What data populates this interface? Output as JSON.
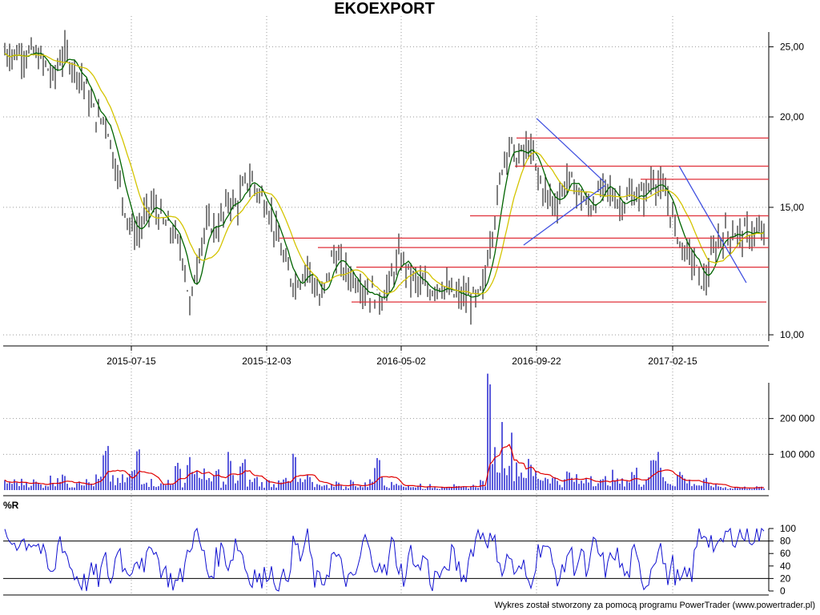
{
  "chart_data": [
    {
      "type": "candlestick",
      "title": "EKOEXPORT",
      "x_tick_labels": [
        "2015-07-15",
        "2015-12-03",
        "2016-05-02",
        "2016-09-22",
        "2017-02-15"
      ],
      "y_tick_labels": [
        "10,00",
        "15,00",
        "20,00",
        "25,00"
      ],
      "ylim": [
        9.8,
        26.2
      ],
      "y_scale": "log",
      "grid": true,
      "price_series": [
        24.5,
        24.0,
        23.5,
        22.5,
        24.0,
        24.5,
        23.5,
        23.0,
        22.0,
        20.5,
        19.8,
        20.0,
        18.0,
        16.5,
        15.0,
        14.0,
        13.8,
        14.5,
        15.2,
        14.8,
        14.2,
        14.0,
        13.5,
        12.8,
        10.8,
        12.5,
        13.8,
        14.2,
        14.0,
        14.5,
        15.5,
        15.0,
        15.8,
        16.5,
        16.0,
        15.5,
        15.0,
        14.0,
        13.0,
        12.2,
        11.8,
        12.0,
        12.5,
        11.8,
        11.0,
        12.0,
        13.0,
        12.5,
        12.2,
        12.0,
        11.8,
        11.5,
        11.4,
        11.2,
        11.5,
        12.0,
        12.8,
        12.5,
        12.0,
        11.8,
        11.6,
        11.5,
        11.8,
        11.6,
        11.4,
        11.3,
        11.3,
        11.2,
        11.2,
        11.6,
        13.5,
        15.0,
        17.5,
        18.5,
        17.5,
        17.8,
        18.2,
        17.0,
        16.0,
        15.5,
        15.2,
        15.8,
        16.5,
        16.0,
        15.5,
        15.0,
        15.2,
        15.8,
        16.0,
        15.5,
        15.2,
        15.4,
        15.6,
        15.5,
        15.8,
        16.5,
        16.0,
        15.5,
        14.5,
        13.5,
        13.0,
        12.8,
        12.0,
        11.8,
        12.8,
        13.5,
        13.8
      ],
      "price_series_x": {
        "start": "2015-04-01",
        "step_days": 7
      },
      "moving_average_note": "",
      "horizontal_levels": [
        18.7,
        17.1,
        16.4,
        14.6,
        13.6,
        13.2,
        12.4,
        11.1
      ],
      "trendlines": [
        {
          "from": [
            "2016-09-22",
            19.9
          ],
          "to": [
            "2016-12-05",
            16.2
          ]
        },
        {
          "from": [
            "2016-09-08",
            13.3
          ],
          "to": [
            "2016-12-05",
            16.1
          ]
        },
        {
          "from": [
            "2017-02-22",
            17.1
          ],
          "to": [
            "2017-05-05",
            11.8
          ]
        }
      ]
    },
    {
      "type": "bar",
      "y_tick_labels": [
        "100 000",
        "200 000"
      ],
      "ylim": [
        0,
        300000
      ],
      "volume_overlay": "moving average line",
      "volume_series": [
        30000,
        20000,
        25000,
        40000,
        60000,
        35000,
        20000,
        45000,
        30000,
        25000,
        40000,
        110000,
        50000,
        30000,
        40000,
        60000,
        160000,
        50000,
        30000,
        25000,
        20000,
        40000,
        70000,
        30000,
        120000,
        50000,
        90000,
        30000,
        60000,
        25000,
        110000,
        40000,
        80000,
        30000,
        40000,
        25000,
        30000,
        20000,
        60000,
        30000,
        110000,
        30000,
        40000,
        20000,
        30000,
        15000,
        30000,
        20000,
        10000,
        30000,
        15000,
        20000,
        60000,
        140000,
        30000,
        20000,
        30000,
        15000,
        10000,
        20000,
        10000,
        15000,
        10000,
        20000,
        15000,
        10000,
        10000,
        15000,
        20000,
        30000,
        290000,
        120000,
        200000,
        150000,
        100000,
        70000,
        80000,
        60000,
        50000,
        60000,
        40000,
        30000,
        60000,
        40000,
        30000,
        60000,
        40000,
        30000,
        40000,
        50000,
        30000,
        40000,
        60000,
        30000,
        50000,
        170000,
        100000,
        40000,
        30000,
        60000,
        40000,
        30000,
        20000,
        30000,
        20000,
        15000,
        10000
      ]
    },
    {
      "type": "line",
      "series_label": "%R",
      "y_tick_labels": [
        "0",
        "20",
        "40",
        "60",
        "80",
        "100"
      ],
      "ylim": [
        0,
        100
      ],
      "reference_lines": [
        20,
        80
      ],
      "wr_series": [
        80,
        70,
        40,
        20,
        90,
        60,
        30,
        20,
        10,
        30,
        20,
        50,
        10,
        80,
        30,
        40,
        60,
        20,
        90,
        50,
        30,
        20,
        10,
        30,
        80,
        90,
        60,
        20,
        50,
        70,
        40,
        80,
        60,
        20,
        30,
        10,
        40,
        20,
        10,
        30,
        80,
        50,
        90,
        20,
        10,
        30,
        60,
        40,
        20,
        10,
        50,
        90,
        30,
        60,
        20,
        80,
        40,
        20,
        70,
        30,
        60,
        10,
        30,
        20,
        60,
        40,
        20,
        60,
        90,
        95,
        80,
        70,
        30,
        60,
        20,
        40,
        10,
        50,
        80,
        60,
        30,
        20,
        70,
        40,
        60,
        20,
        80,
        50,
        30,
        70,
        40,
        20,
        60,
        30,
        10,
        50,
        80,
        20,
        40,
        10,
        20,
        30,
        90,
        95,
        80,
        60,
        90
      ]
    }
  ],
  "footer_text": "Wykres został stworzony za pomocą programu PowerTrader (www.powertrader.pl)",
  "colors": {
    "candle_up": "#000000",
    "ma_slow": "#d4c400",
    "ma_fast": "#006400",
    "level_line": "#e0303a",
    "trendline": "#4050e0",
    "volume_bar": "#1515cc",
    "volume_ma": "#e00000",
    "wr_line": "#1010d0",
    "grid": "#9a9a9a"
  }
}
